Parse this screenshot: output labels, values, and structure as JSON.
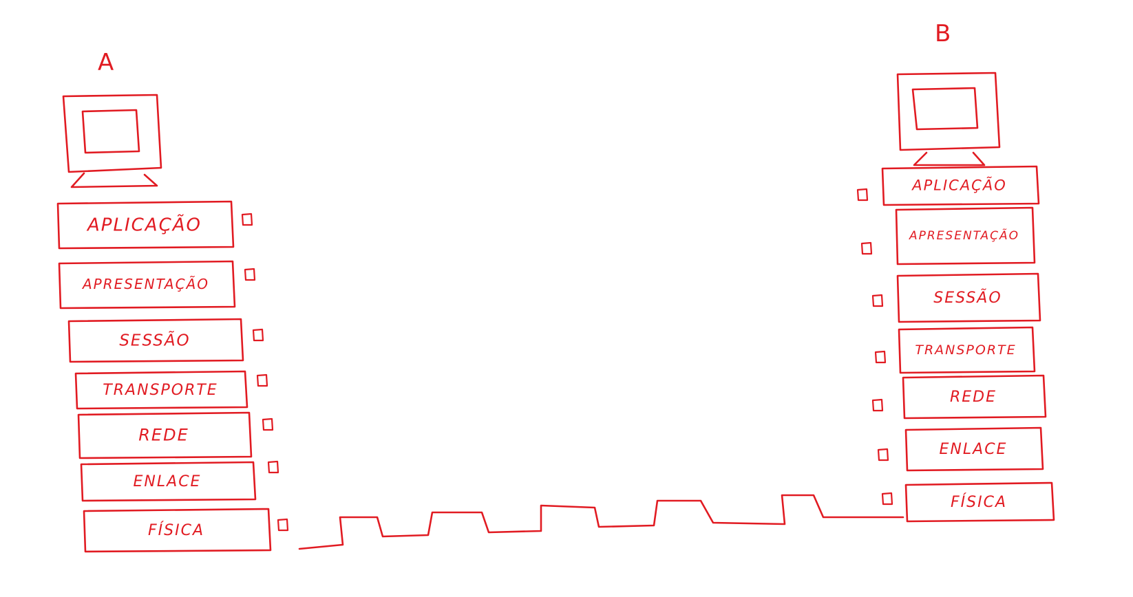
{
  "hosts": {
    "a": {
      "label": "A",
      "layers": [
        "APLICAÇÃO",
        "APRESENTAÇÃO",
        "SESSÃO",
        "TRANSPORTE",
        "REDE",
        "ENLACE",
        "FÍSICA"
      ]
    },
    "b": {
      "label": "B",
      "layers": [
        "APLICAÇÃO",
        "APRESENTAÇÃO",
        "SESSÃO",
        "TRANSPORTE",
        "REDE",
        "ENLACE",
        "FÍSICA"
      ]
    }
  },
  "colors": {
    "ink": "#e11b22",
    "background": "#ffffff"
  },
  "icons": {
    "host": "computer-monitor-icon",
    "layer_marker": "small-square-icon",
    "link": "square-wave-signal"
  }
}
